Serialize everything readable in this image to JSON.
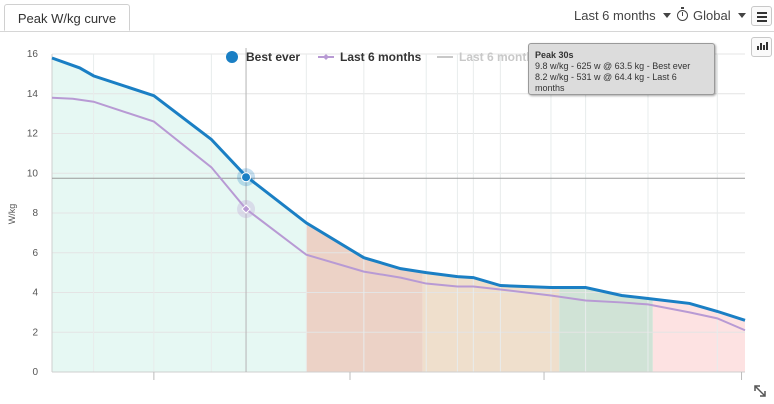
{
  "tabs": [
    {
      "label": "Peak W/kg curve"
    }
  ],
  "controls": {
    "range_label": "Last 6 months",
    "scope_label": "Global",
    "menu_icon": "hamburger-icon",
    "chart_type_icon": "bar-chart-icon",
    "scope_icon": "stopwatch-icon",
    "resize_icon": "resize-diagonal-icon"
  },
  "tooltip": {
    "title": "Peak 30s",
    "line1": "9.8 w/kg - 625 w @ 63.5 kg - Best ever",
    "line2": "8.2 w/kg - 531 w @ 64.4 kg - Last 6 months"
  },
  "colors": {
    "best": "#1a7fc4",
    "recent": "#b89ad4",
    "zones": [
      "#e6f8f3",
      "#ecd2c6",
      "#efdfcc",
      "#d0e3d6",
      "#fde2e2"
    ]
  },
  "chart_data": {
    "type": "line",
    "title": "",
    "xlabel": "",
    "ylabel": "W/kg",
    "ylim": [
      0,
      16
    ],
    "y_ticks": [
      0,
      2,
      4,
      6,
      8,
      10,
      12,
      14,
      16
    ],
    "grid": true,
    "legend_position": "top-center",
    "series": [
      {
        "name": "Best ever",
        "x": [
          0,
          0.04,
          0.06,
          0.147,
          0.23,
          0.28,
          0.367,
          0.45,
          0.503,
          0.54,
          0.585,
          0.608,
          0.647,
          0.72,
          0.77,
          0.822,
          0.86,
          0.92,
          0.96,
          1.0
        ],
        "values": [
          15.8,
          15.3,
          14.9,
          13.9,
          11.7,
          9.85,
          7.5,
          5.75,
          5.2,
          5.0,
          4.8,
          4.75,
          4.35,
          4.25,
          4.25,
          3.85,
          3.7,
          3.45,
          3.05,
          2.6
        ]
      },
      {
        "name": "Last 6 months",
        "x": [
          0,
          0.03,
          0.06,
          0.147,
          0.23,
          0.28,
          0.367,
          0.45,
          0.503,
          0.54,
          0.585,
          0.608,
          0.647,
          0.72,
          0.77,
          0.822,
          0.86,
          0.92,
          0.96,
          1.0
        ],
        "values": [
          13.8,
          13.75,
          13.6,
          12.6,
          10.3,
          8.2,
          5.9,
          5.05,
          4.75,
          4.45,
          4.3,
          4.3,
          4.15,
          3.85,
          3.6,
          3.5,
          3.4,
          3.0,
          2.7,
          2.1
        ]
      },
      {
        "name": "Last 6 months"
      }
    ],
    "highlight": {
      "x": 0.28,
      "values": [
        9.8,
        8.2
      ]
    },
    "zones_x": [
      [
        0,
        0.367
      ],
      [
        0.367,
        0.535
      ],
      [
        0.535,
        0.732
      ],
      [
        0.732,
        0.867
      ],
      [
        0.867,
        1.0
      ]
    ]
  }
}
